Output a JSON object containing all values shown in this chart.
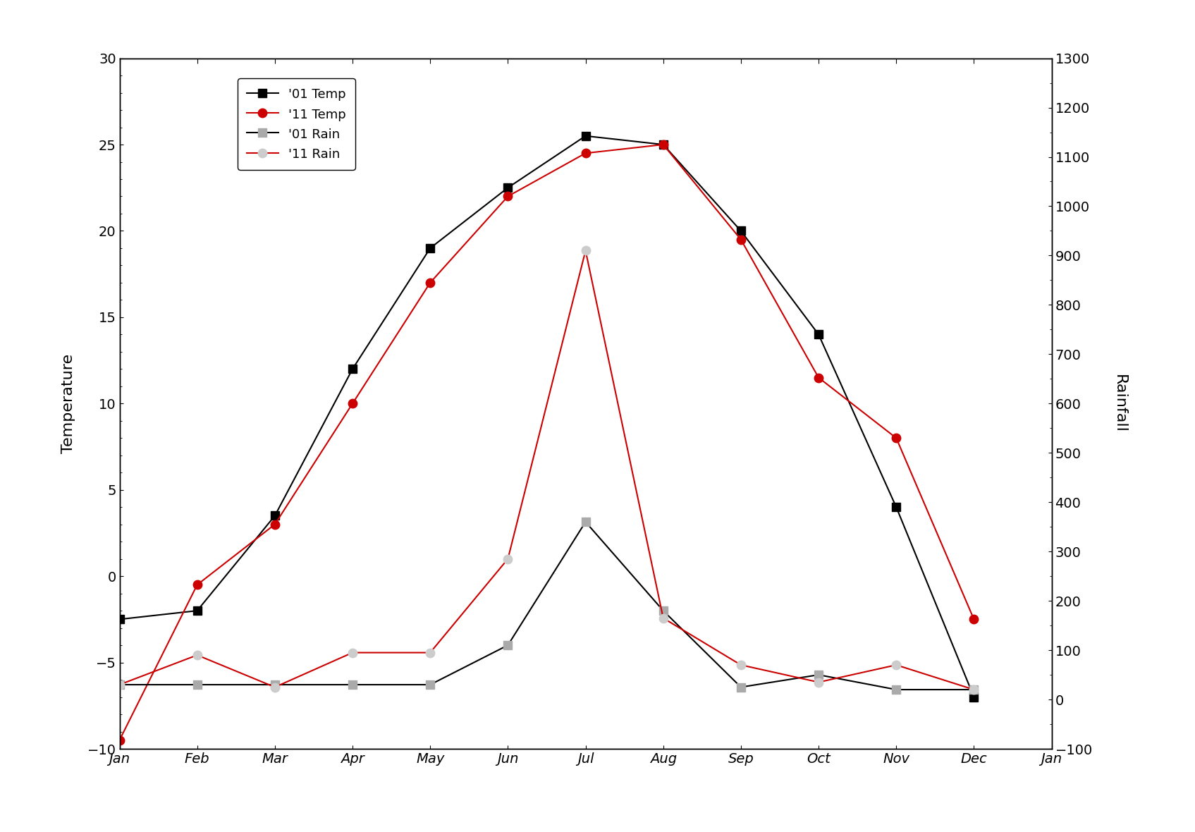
{
  "months": [
    "Jan",
    "Feb",
    "Mar",
    "Apr",
    "May",
    "Jun",
    "Jul",
    "Aug",
    "Sep",
    "Oct",
    "Nov",
    "Dec"
  ],
  "temp_01": [
    -2.5,
    -2.0,
    3.5,
    12.0,
    19.0,
    22.5,
    25.5,
    25.0,
    20.0,
    14.0,
    4.0,
    -7.0
  ],
  "temp_11": [
    -9.5,
    -0.5,
    3.0,
    10.0,
    17.0,
    22.0,
    24.5,
    25.0,
    19.5,
    11.5,
    8.0,
    -2.5
  ],
  "rain_01": [
    30,
    30,
    30,
    30,
    30,
    110,
    360,
    180,
    25,
    50,
    20,
    20
  ],
  "rain_11": [
    30,
    90,
    25,
    95,
    95,
    285,
    910,
    165,
    70,
    35,
    70,
    20
  ],
  "temp_color_01": "#000000",
  "temp_color_11": "#cc0000",
  "rain_line_01_color": "#000000",
  "rain_marker_01_color": "#aaaaaa",
  "rain_line_11_color": "#cc0000",
  "rain_marker_11_color": "#cccccc",
  "ylim_left": [
    -10,
    30
  ],
  "ylim_right": [
    -100,
    1300
  ],
  "ylabel_left": "Temperature",
  "ylabel_right": "Rainfall",
  "legend_labels": [
    "'01 Temp",
    "'11 Temp",
    "'01 Rain",
    "'11 Rain"
  ],
  "xlabel_ticks": [
    "Jan",
    "Feb",
    "Mar",
    "Apr",
    "May",
    "Jun",
    "Jul",
    "Aug",
    "Sep",
    "Oct",
    "Nov",
    "Dec",
    "Jan"
  ],
  "marker_size_sq": 8,
  "marker_size_ci": 9,
  "linewidth": 1.5,
  "tick_fontsize": 14,
  "label_fontsize": 16,
  "legend_fontsize": 13
}
